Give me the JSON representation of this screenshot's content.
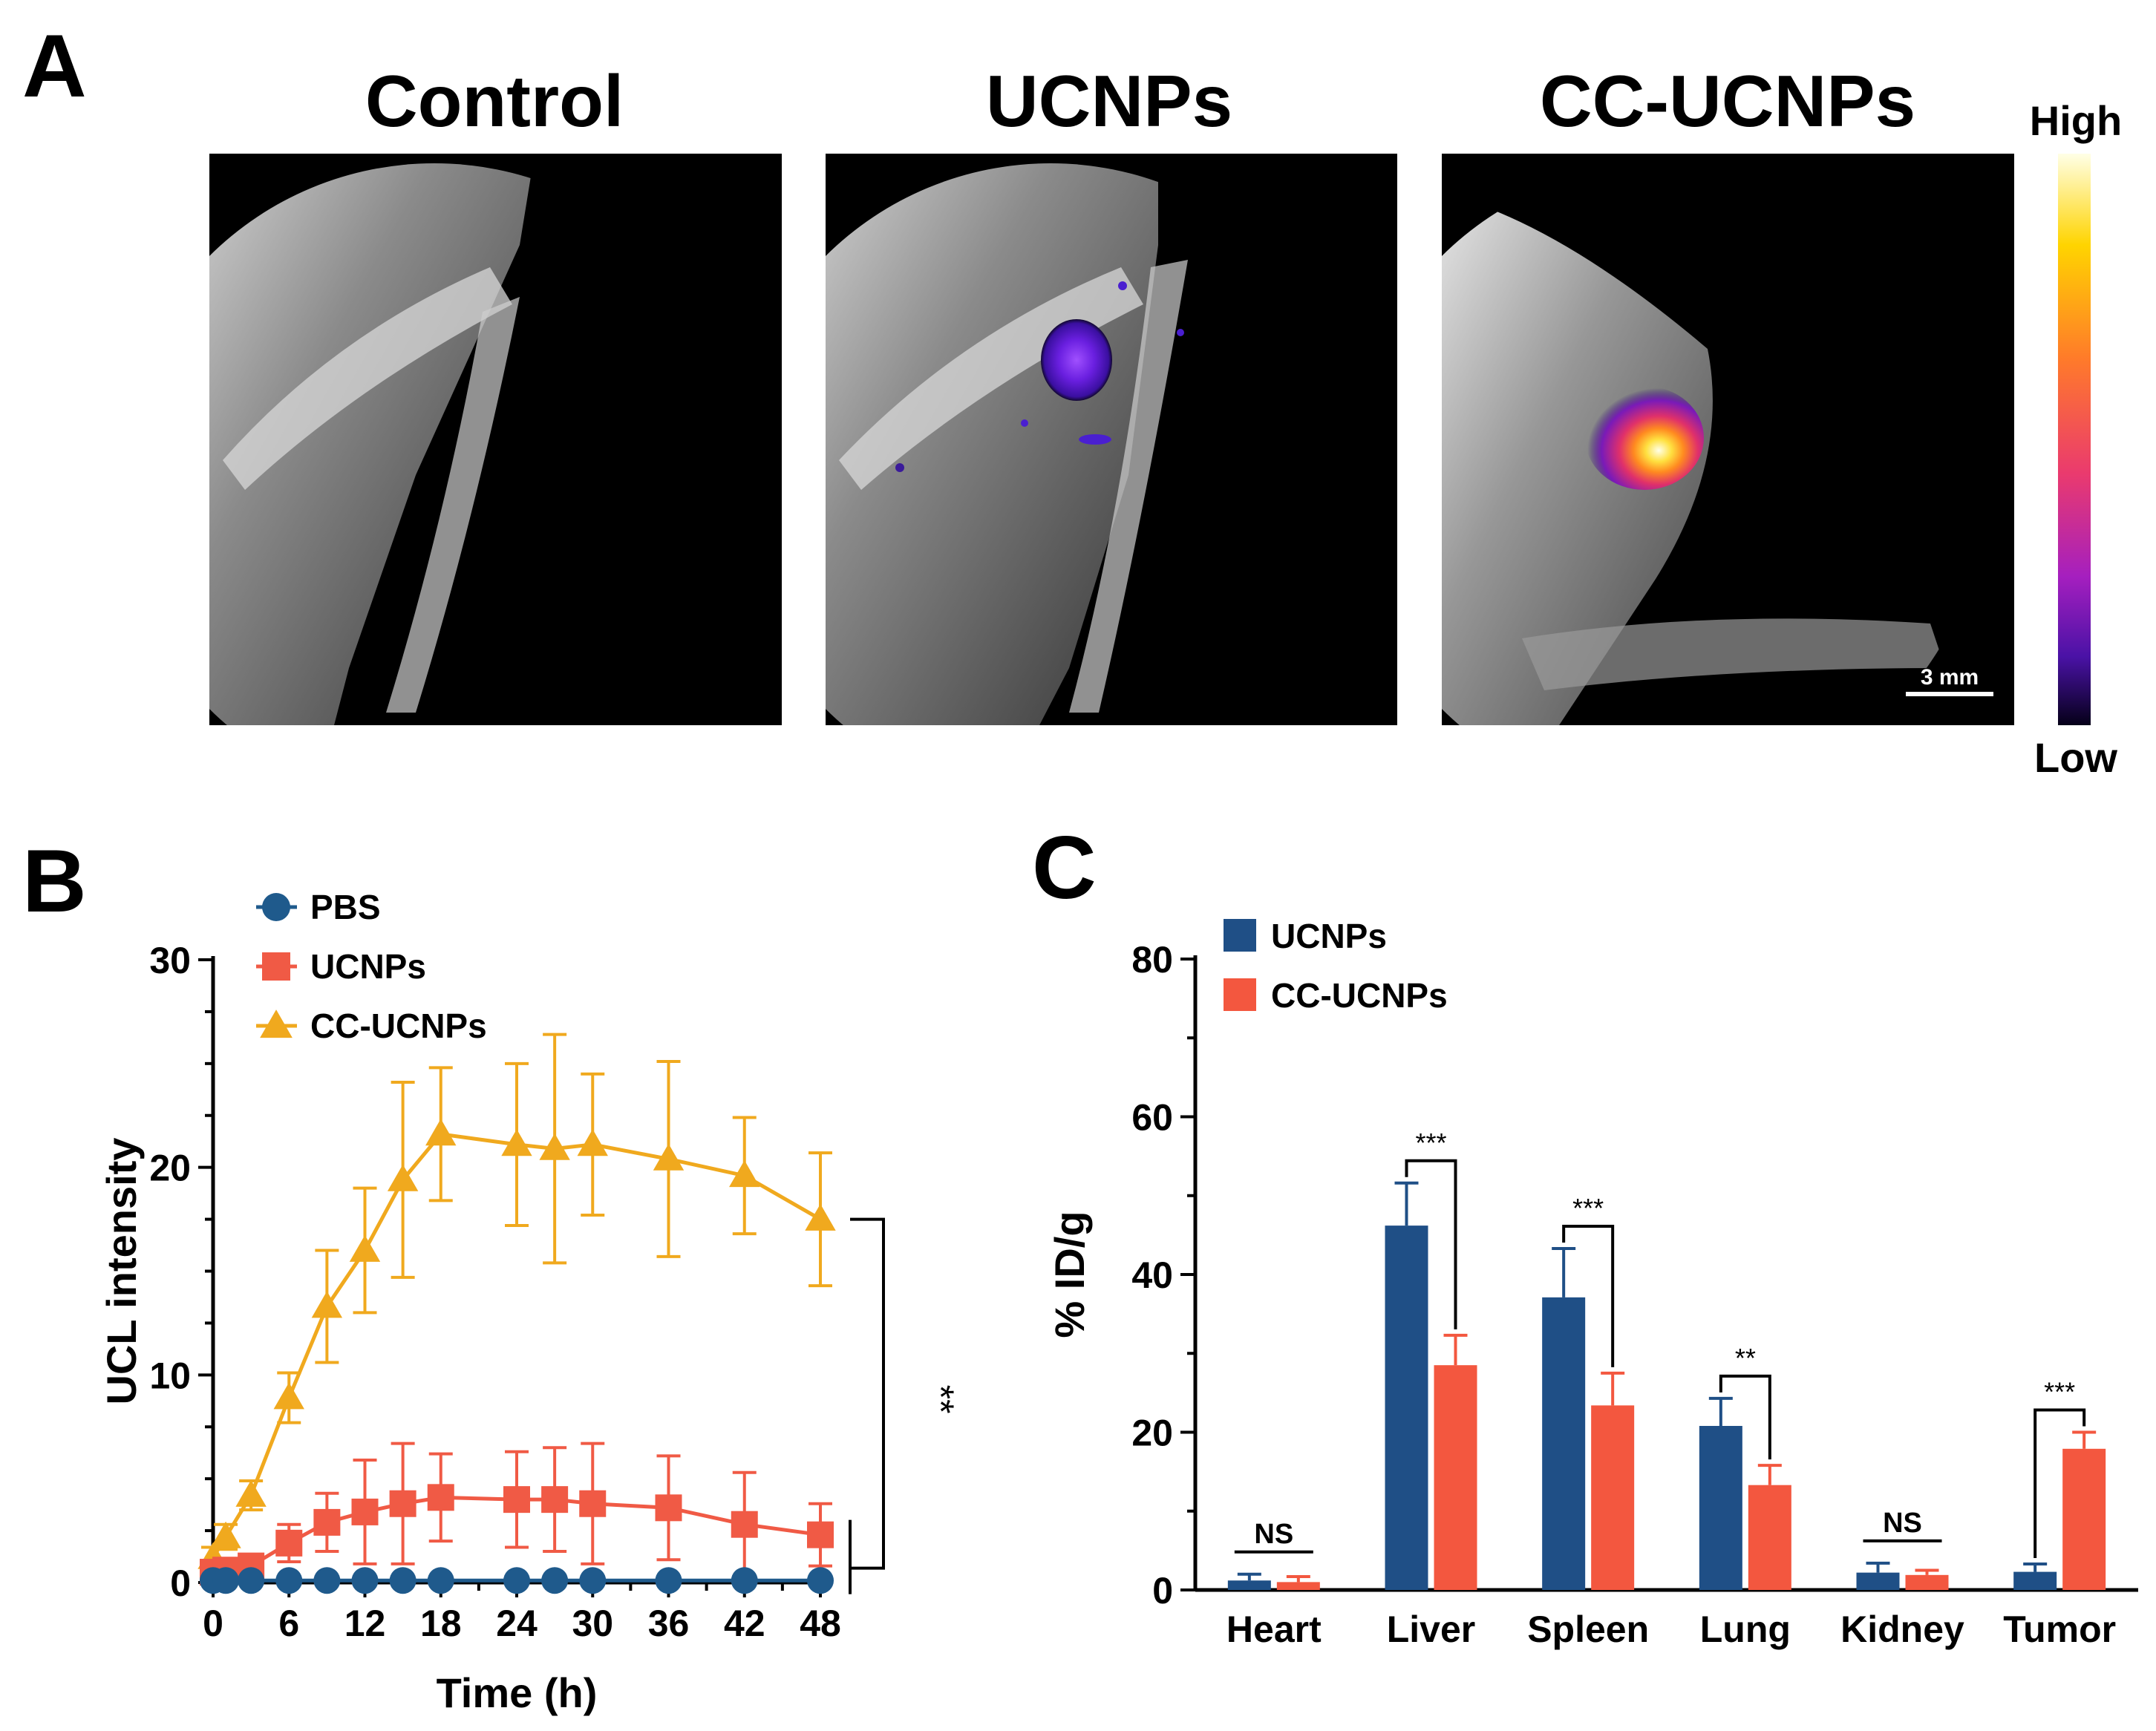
{
  "panel_a": {
    "letter": "A",
    "panels": [
      {
        "title": "Control"
      },
      {
        "title": "UCNPs"
      },
      {
        "title": "CC-UCNPs"
      }
    ],
    "scale_bar_label": "3 mm",
    "colorbar": {
      "high_label": "High",
      "low_label": "Low"
    },
    "colors": {
      "bg": "#000000",
      "stop_high": "#ffffe6",
      "stop_2": "#ffd400",
      "stop_3": "#ff7a2a",
      "stop_4": "#ea3a6e",
      "stop_5": "#a51fbf",
      "stop_6": "#4a12a6",
      "stop_low": "#050018"
    }
  },
  "panel_b": {
    "letter": "B"
  },
  "panel_c": {
    "letter": "C"
  },
  "chart_data": [
    {
      "type": "line",
      "title": "",
      "xlabel": "Time (h)",
      "ylabel": "UCL intensity",
      "xlim": [
        0,
        48
      ],
      "ylim": [
        0,
        30
      ],
      "xticks": [
        "0",
        "6",
        "12",
        "18",
        "24",
        "30",
        "36",
        "42",
        "48"
      ],
      "yticks": [
        "0",
        "10",
        "20",
        "30"
      ],
      "legend_position": "top-left",
      "series": [
        {
          "name": "PBS",
          "marker": "circle",
          "color": "#1f5a8c",
          "x": [
            0,
            1,
            3,
            6,
            9,
            12,
            15,
            18,
            24,
            27,
            30,
            36,
            42,
            48
          ],
          "y": [
            0.1,
            0.1,
            0.1,
            0.1,
            0.1,
            0.1,
            0.1,
            0.1,
            0.1,
            0.1,
            0.1,
            0.1,
            0.1,
            0.1
          ],
          "err": [
            0,
            0,
            0,
            0,
            0,
            0,
            0,
            0,
            0,
            0,
            0,
            0,
            0,
            0
          ]
        },
        {
          "name": "UCNPs",
          "marker": "square",
          "color": "#f05a45",
          "x": [
            0,
            1,
            3,
            6,
            9,
            12,
            15,
            18,
            24,
            27,
            30,
            36,
            42,
            48
          ],
          "y": [
            0.5,
            0.6,
            0.8,
            1.9,
            2.9,
            3.4,
            3.8,
            4.1,
            4.0,
            4.0,
            3.8,
            3.6,
            2.8,
            2.3
          ],
          "err": [
            0.3,
            0.4,
            0.5,
            0.9,
            1.4,
            2.5,
            2.9,
            2.1,
            2.3,
            2.5,
            2.9,
            2.5,
            2.5,
            1.5
          ]
        },
        {
          "name": "CC-UCNPs",
          "marker": "triangle",
          "color": "#f0a91e",
          "x": [
            0,
            1,
            3,
            6,
            9,
            12,
            15,
            18,
            24,
            27,
            30,
            36,
            42,
            48
          ],
          "y": [
            1.2,
            2.2,
            4.2,
            8.9,
            13.3,
            16.0,
            19.4,
            21.6,
            21.1,
            20.9,
            21.1,
            20.4,
            19.6,
            17.5
          ],
          "err": [
            0.5,
            0.6,
            0.7,
            1.2,
            2.7,
            3.0,
            4.7,
            3.2,
            3.9,
            5.5,
            3.4,
            4.7,
            2.8,
            3.2
          ]
        }
      ],
      "annotations": [
        {
          "text": "**",
          "between": [
            "CC-UCNPs",
            "UCNPs"
          ],
          "at_x": 48
        }
      ]
    },
    {
      "type": "bar",
      "title": "",
      "xlabel": "",
      "ylabel": "% ID/g",
      "ylim": [
        0,
        80
      ],
      "yticks": [
        "0",
        "20",
        "40",
        "60",
        "80"
      ],
      "legend_position": "top-left",
      "categories": [
        "Heart",
        "Liver",
        "Spleen",
        "Lung",
        "Kidney",
        "Tumor"
      ],
      "series": [
        {
          "name": "UCNPs",
          "color": "#1f4f86",
          "values": [
            1.2,
            46.2,
            37.1,
            20.8,
            2.2,
            2.3
          ],
          "err": [
            0.8,
            5.4,
            6.2,
            3.5,
            1.2,
            1.0
          ]
        },
        {
          "name": "CC-UCNPs",
          "color": "#f3573f",
          "values": [
            1.0,
            28.5,
            23.4,
            13.3,
            1.9,
            17.9
          ],
          "err": [
            0.7,
            3.8,
            4.1,
            2.5,
            0.6,
            2.1
          ]
        }
      ],
      "significance": [
        "NS",
        "***",
        "***",
        "**",
        "NS",
        "***"
      ]
    }
  ]
}
